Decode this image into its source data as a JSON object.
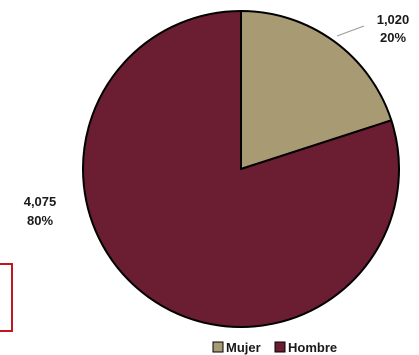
{
  "chart_data": {
    "type": "pie",
    "categories": [
      "Mujer",
      "Hombre"
    ],
    "values": [
      1020,
      4075
    ],
    "value_labels": [
      "1,020",
      "4,075"
    ],
    "percent_labels": [
      "20%",
      "80%"
    ],
    "colors": [
      "#a89b74",
      "#6b1d31"
    ],
    "title": "",
    "legend_position": "bottom-right"
  }
}
